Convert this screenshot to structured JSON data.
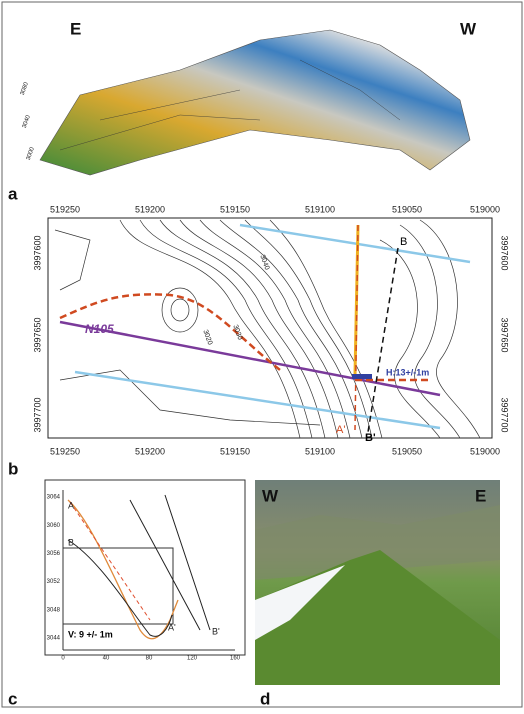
{
  "panel_a": {
    "label": "a",
    "left": "E",
    "right": "W",
    "z_ticks": [
      "3080",
      "3040",
      "3000"
    ]
  },
  "panel_b": {
    "label": "b",
    "x_ticks": [
      519250,
      519200,
      519150,
      519100,
      519050,
      519000
    ],
    "y_ticks": [
      3997600,
      3997650,
      3997700
    ],
    "fault": "N105",
    "offset": "H:13+/-1m",
    "points": [
      "B",
      "B'",
      "A'"
    ],
    "contours": [
      "3020",
      "3030",
      "3040"
    ]
  },
  "panel_c": {
    "label": "c",
    "y_ticks": [
      3064,
      3060,
      3056,
      3052,
      3048,
      3044
    ],
    "x_ticks": [
      0,
      40,
      80,
      120,
      160
    ],
    "offset": "V: 9 +/- 1m",
    "points": [
      "A",
      "B",
      "A'",
      "B'"
    ]
  },
  "panel_d": {
    "label": "d",
    "left": "W",
    "right": "E"
  }
}
